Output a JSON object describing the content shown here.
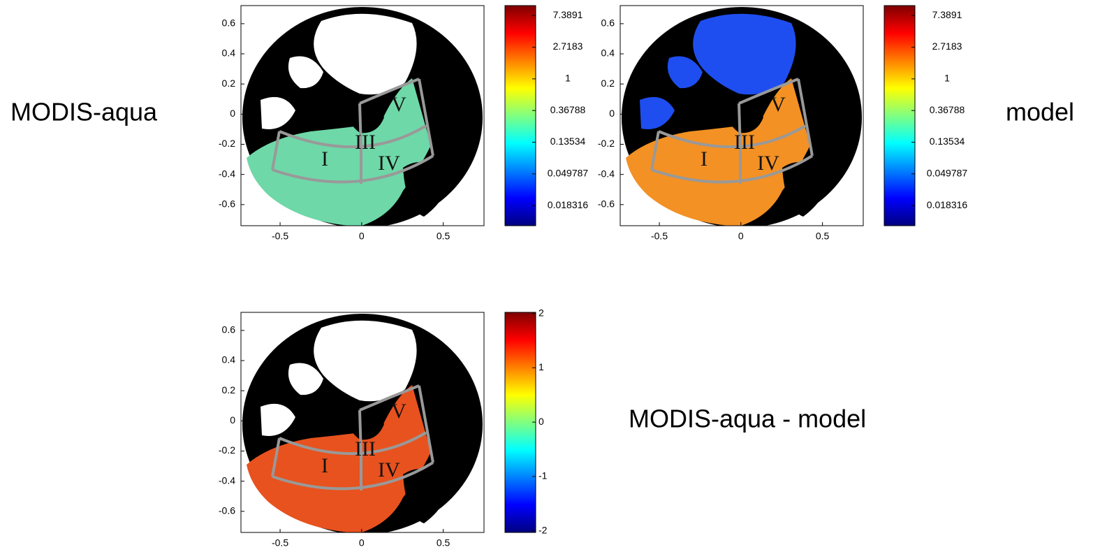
{
  "labels": {
    "left": "MODIS-aqua",
    "right": "model",
    "bottom": "MODIS-aqua - model"
  },
  "regions": [
    "I",
    "III",
    "IV",
    "V"
  ],
  "colormap": [
    "#00007f",
    "#0000ff",
    "#0080ff",
    "#00ffff",
    "#80ff80",
    "#ffff00",
    "#ff8000",
    "#ff0000",
    "#7f0000"
  ],
  "panels": [
    {
      "xlim": [
        -0.74,
        0.75
      ],
      "ylim": [
        -0.74,
        0.72
      ],
      "xticks": [
        -0.5,
        0,
        0.5
      ],
      "yticks": [
        -0.6,
        -0.4,
        -0.2,
        0,
        0.2,
        0.4,
        0.6
      ],
      "ocean": "#6fd8a8",
      "arctic": "#ffffff",
      "colorbar": {
        "log": true,
        "clim": [
          0.0097,
          10.1
        ],
        "ticks": [
          0.018316,
          0.049787,
          0.13534,
          0.36788,
          1,
          2.7183,
          7.3891
        ]
      }
    },
    {
      "xlim": [
        -0.74,
        0.75
      ],
      "ylim": [
        -0.74,
        0.72
      ],
      "xticks": [
        -0.5,
        0,
        0.5
      ],
      "yticks": [
        -0.6,
        -0.4,
        -0.2,
        0,
        0.2,
        0.4,
        0.6
      ],
      "ocean": "#f39124",
      "arctic": "#1f4ef0",
      "colorbar": {
        "log": true,
        "clim": [
          0.0097,
          10.1
        ],
        "ticks": [
          0.018316,
          0.049787,
          0.13534,
          0.36788,
          1,
          2.7183,
          7.3891
        ]
      }
    },
    {
      "xlim": [
        -0.74,
        0.75
      ],
      "ylim": [
        -0.74,
        0.72
      ],
      "xticks": [
        -0.5,
        0,
        0.5
      ],
      "yticks": [
        -0.6,
        -0.4,
        -0.2,
        0,
        0.2,
        0.4,
        0.6
      ],
      "ocean": "#e8521e",
      "arctic": "#ffffff",
      "colorbar": {
        "log": false,
        "clim": [
          -2.03,
          2.02
        ],
        "ticks": [
          -2,
          -1,
          0,
          1,
          2
        ]
      }
    }
  ]
}
